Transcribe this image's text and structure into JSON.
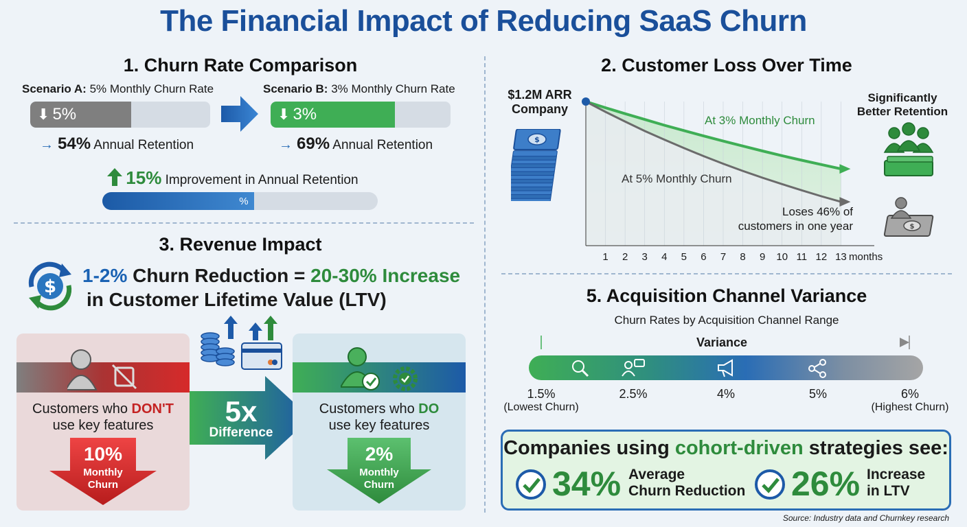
{
  "title": "The Financial Impact of Reducing SaaS Churn",
  "section1": {
    "heading": "1. Churn Rate Comparison",
    "scenario_a": {
      "label": "Scenario A:",
      "desc": "5% Monthly Churn Rate",
      "bar_label": "5%",
      "retention_value": "54%",
      "retention_text": "Annual Retention",
      "bar_fill_fraction": 0.56
    },
    "scenario_b": {
      "label": "Scenario B:",
      "desc": "3% Monthly Churn Rate",
      "bar_label": "3%",
      "retention_value": "69%",
      "retention_text": "Annual Retention",
      "bar_fill_fraction": 0.69
    },
    "improvement_value": "15%",
    "improvement_text": "Improvement in Annual Retention",
    "progress_label": "%",
    "progress_fraction": 0.55
  },
  "section2": {
    "heading": "2. Customer Loss Over Time",
    "company_label_1": "$1.2M ARR",
    "company_label_2": "Company",
    "better_1": "Significantly",
    "better_2": "Better Retention",
    "line_3_label": "At 3% Monthly Churn",
    "line_5_label": "At 5% Monthly Churn",
    "loss_note_1": "Loses 46% of",
    "loss_note_2": "customers in one year",
    "x_ticks": [
      "1",
      "2",
      "3",
      "4",
      "5",
      "6",
      "7",
      "8",
      "9",
      "10",
      "11",
      "12",
      "13"
    ],
    "x_unit": "months"
  },
  "chart_data": {
    "type": "line",
    "x": [
      0,
      1,
      2,
      3,
      4,
      5,
      6,
      7,
      8,
      9,
      10,
      11,
      12,
      13
    ],
    "xlabel": "months",
    "series": [
      {
        "name": "At 3% Monthly Churn",
        "values": [
          1.0,
          0.97,
          0.941,
          0.913,
          0.885,
          0.859,
          0.833,
          0.808,
          0.784,
          0.76,
          0.737,
          0.715,
          0.694,
          0.673
        ]
      },
      {
        "name": "At 5% Monthly Churn",
        "values": [
          1.0,
          0.95,
          0.903,
          0.857,
          0.815,
          0.774,
          0.735,
          0.698,
          0.663,
          0.63,
          0.599,
          0.569,
          0.54,
          0.513
        ]
      }
    ],
    "ylim": [
      0.3,
      1.0
    ]
  },
  "section3": {
    "heading": "3. Revenue Impact",
    "line1_a": "1-2%",
    "line1_b": " Churn Reduction = ",
    "line1_c": "20-30% Increase",
    "line2": "in Customer Lifetime Value (LTV)",
    "left_card": {
      "text_a": "Customers who ",
      "text_b": "DON'T",
      "text_c": "use key features",
      "big": "10%",
      "sub1": "Monthly",
      "sub2": "Churn"
    },
    "middle": {
      "big": "5x",
      "sub": "Difference"
    },
    "right_card": {
      "text_a": "Customers who ",
      "text_b": "DO",
      "text_c": "use key features",
      "big": "2%",
      "sub1": "Monthly",
      "sub2": "Churn"
    }
  },
  "section5": {
    "heading": "5. Acquisition Channel Variance",
    "subtitle": "Churn Rates by Acquisition Channel Range",
    "variance_label": "Variance",
    "values": [
      {
        "val": "1.5%",
        "sub": "(Lowest Churn)"
      },
      {
        "val": "2.5%",
        "sub": ""
      },
      {
        "val": "4%",
        "sub": ""
      },
      {
        "val": "5%",
        "sub": ""
      },
      {
        "val": "6%",
        "sub": "(Highest Churn)"
      }
    ]
  },
  "cohort": {
    "heading_a": "Companies using ",
    "heading_b": "cohort-driven",
    "heading_c": " strategies see:",
    "stat1_value": "34%",
    "stat1_l1": "Average",
    "stat1_l2": "Churn Reduction",
    "stat2_value": "26%",
    "stat2_l1": "Increase",
    "stat2_l2": "in LTV"
  },
  "source": "Source: Industry data and Churnkey research",
  "colors": {
    "blue": "#1a4f9a",
    "green": "#2e8b3c",
    "red": "#c42323"
  }
}
